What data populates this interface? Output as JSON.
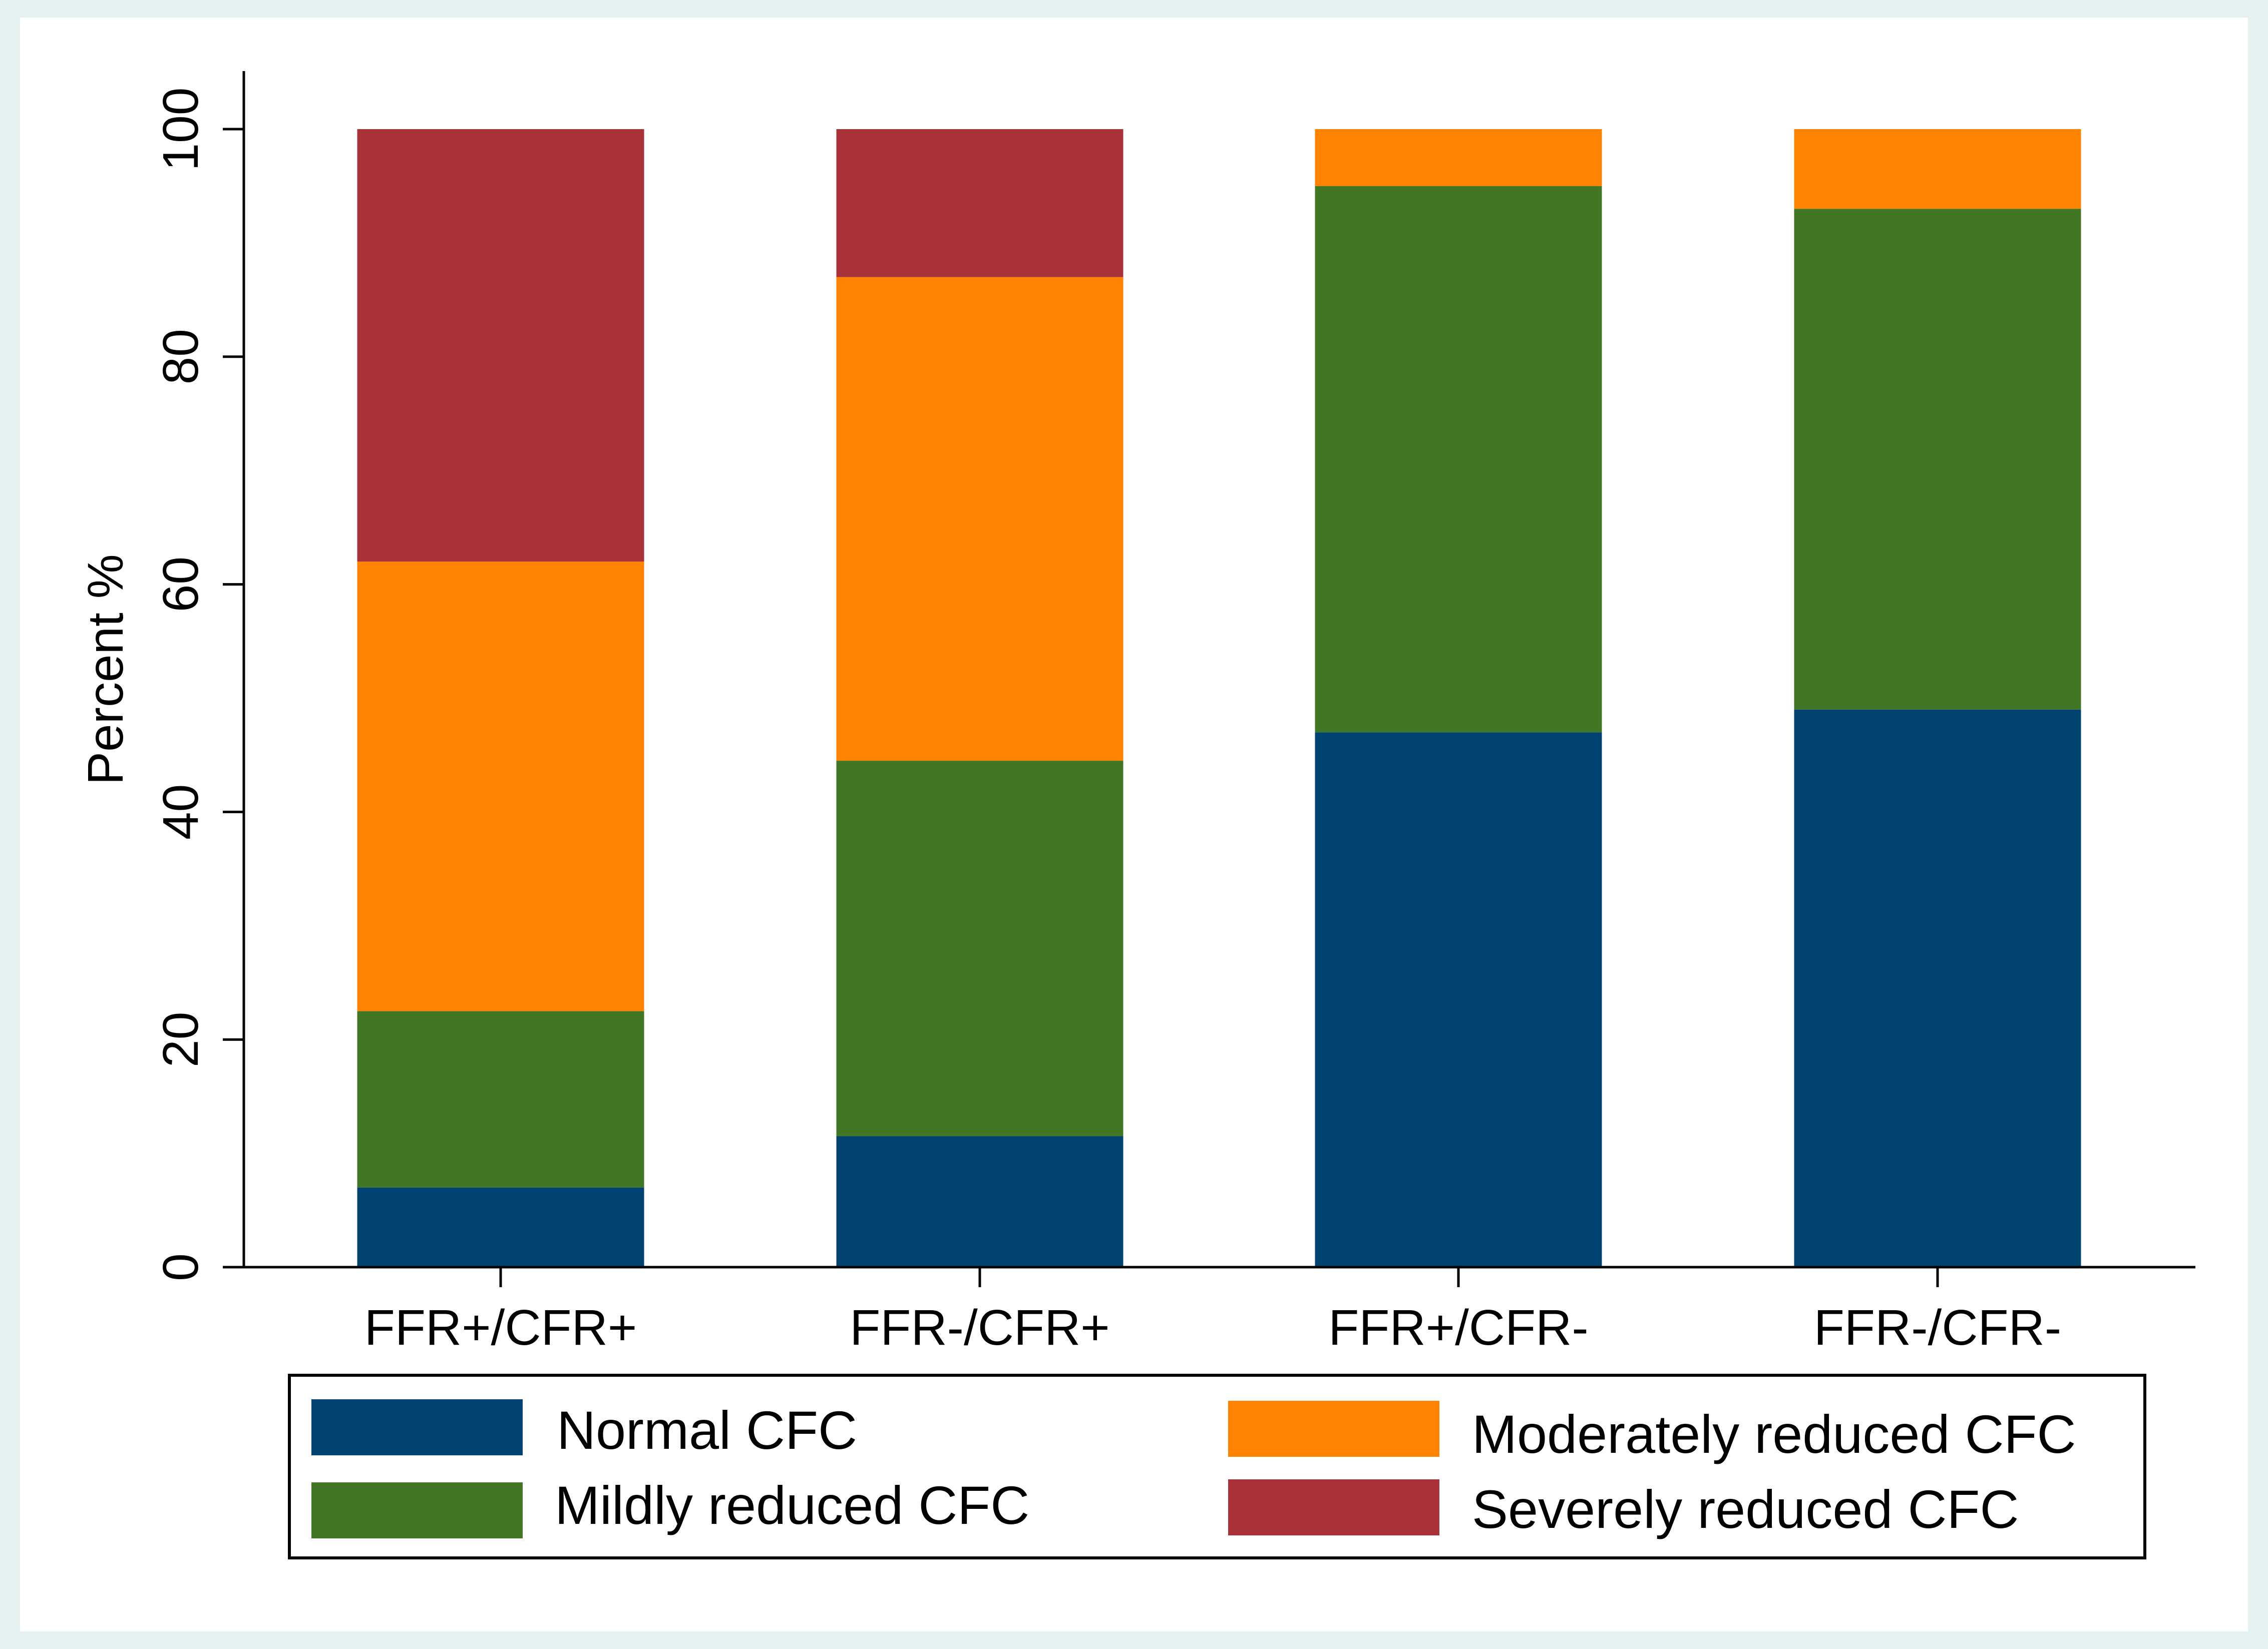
{
  "chart_data": {
    "type": "bar",
    "stacked": true,
    "title": "",
    "xlabel": "",
    "ylabel": "Percent %",
    "ylim": [
      0,
      100
    ],
    "yticks": [
      0,
      20,
      40,
      60,
      80,
      100
    ],
    "categories": [
      "FFR+/CFR+",
      "FFR-/CFR+",
      "FFR+/CFR-",
      "FFR-/CFR-"
    ],
    "series": [
      {
        "name": "Normal CFC",
        "color": "#004370",
        "values": [
          7,
          11.5,
          47,
          49
        ]
      },
      {
        "name": "Mildly reduced CFC",
        "color": "#417624",
        "values": [
          15.5,
          33,
          48,
          44
        ]
      },
      {
        "name": "Moderately reduced CFC",
        "color": "#ff8200",
        "values": [
          39.5,
          42.5,
          5,
          7
        ]
      },
      {
        "name": "Severely reduced CFC",
        "color": "#a8313a",
        "values": [
          38,
          13,
          0,
          0
        ]
      }
    ],
    "legend": {
      "placement": "bottom",
      "order": [
        "Normal CFC",
        "Moderately reduced CFC",
        "Mildly reduced CFC",
        "Severely reduced CFC"
      ]
    }
  }
}
